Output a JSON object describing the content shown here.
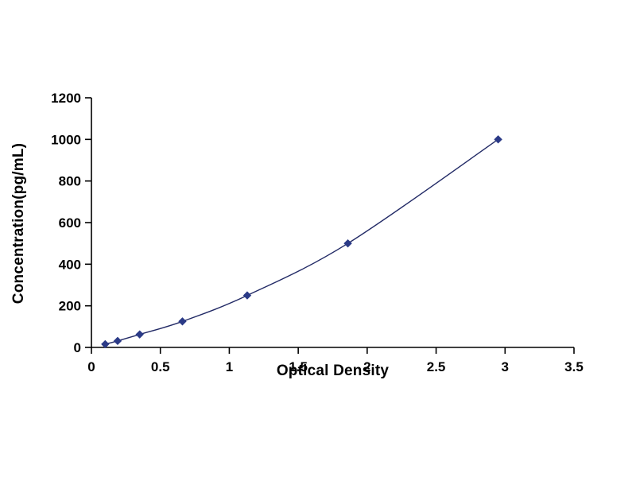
{
  "chart_data": {
    "type": "line",
    "title": "",
    "xlabel": "Optical Density",
    "ylabel": "Concentration(pg/mL)",
    "x": [
      0.1,
      0.19,
      0.35,
      0.66,
      1.13,
      1.86,
      2.95
    ],
    "y": [
      15.6,
      31.2,
      62.5,
      125,
      250,
      500,
      1000
    ],
    "xlim": [
      0,
      3.5
    ],
    "ylim": [
      0,
      1200
    ],
    "x_ticks": [
      0,
      0.5,
      1,
      1.5,
      2,
      2.5,
      3,
      3.5
    ],
    "y_ticks": [
      0,
      200,
      400,
      600,
      800,
      1000,
      1200
    ],
    "marker": "diamond",
    "grid": false,
    "legend": "none",
    "colors": {
      "axis": "#000000",
      "line": "#222a66",
      "marker": "#2b3a87",
      "tick_text": "#000000",
      "background": "#ffffff"
    }
  }
}
